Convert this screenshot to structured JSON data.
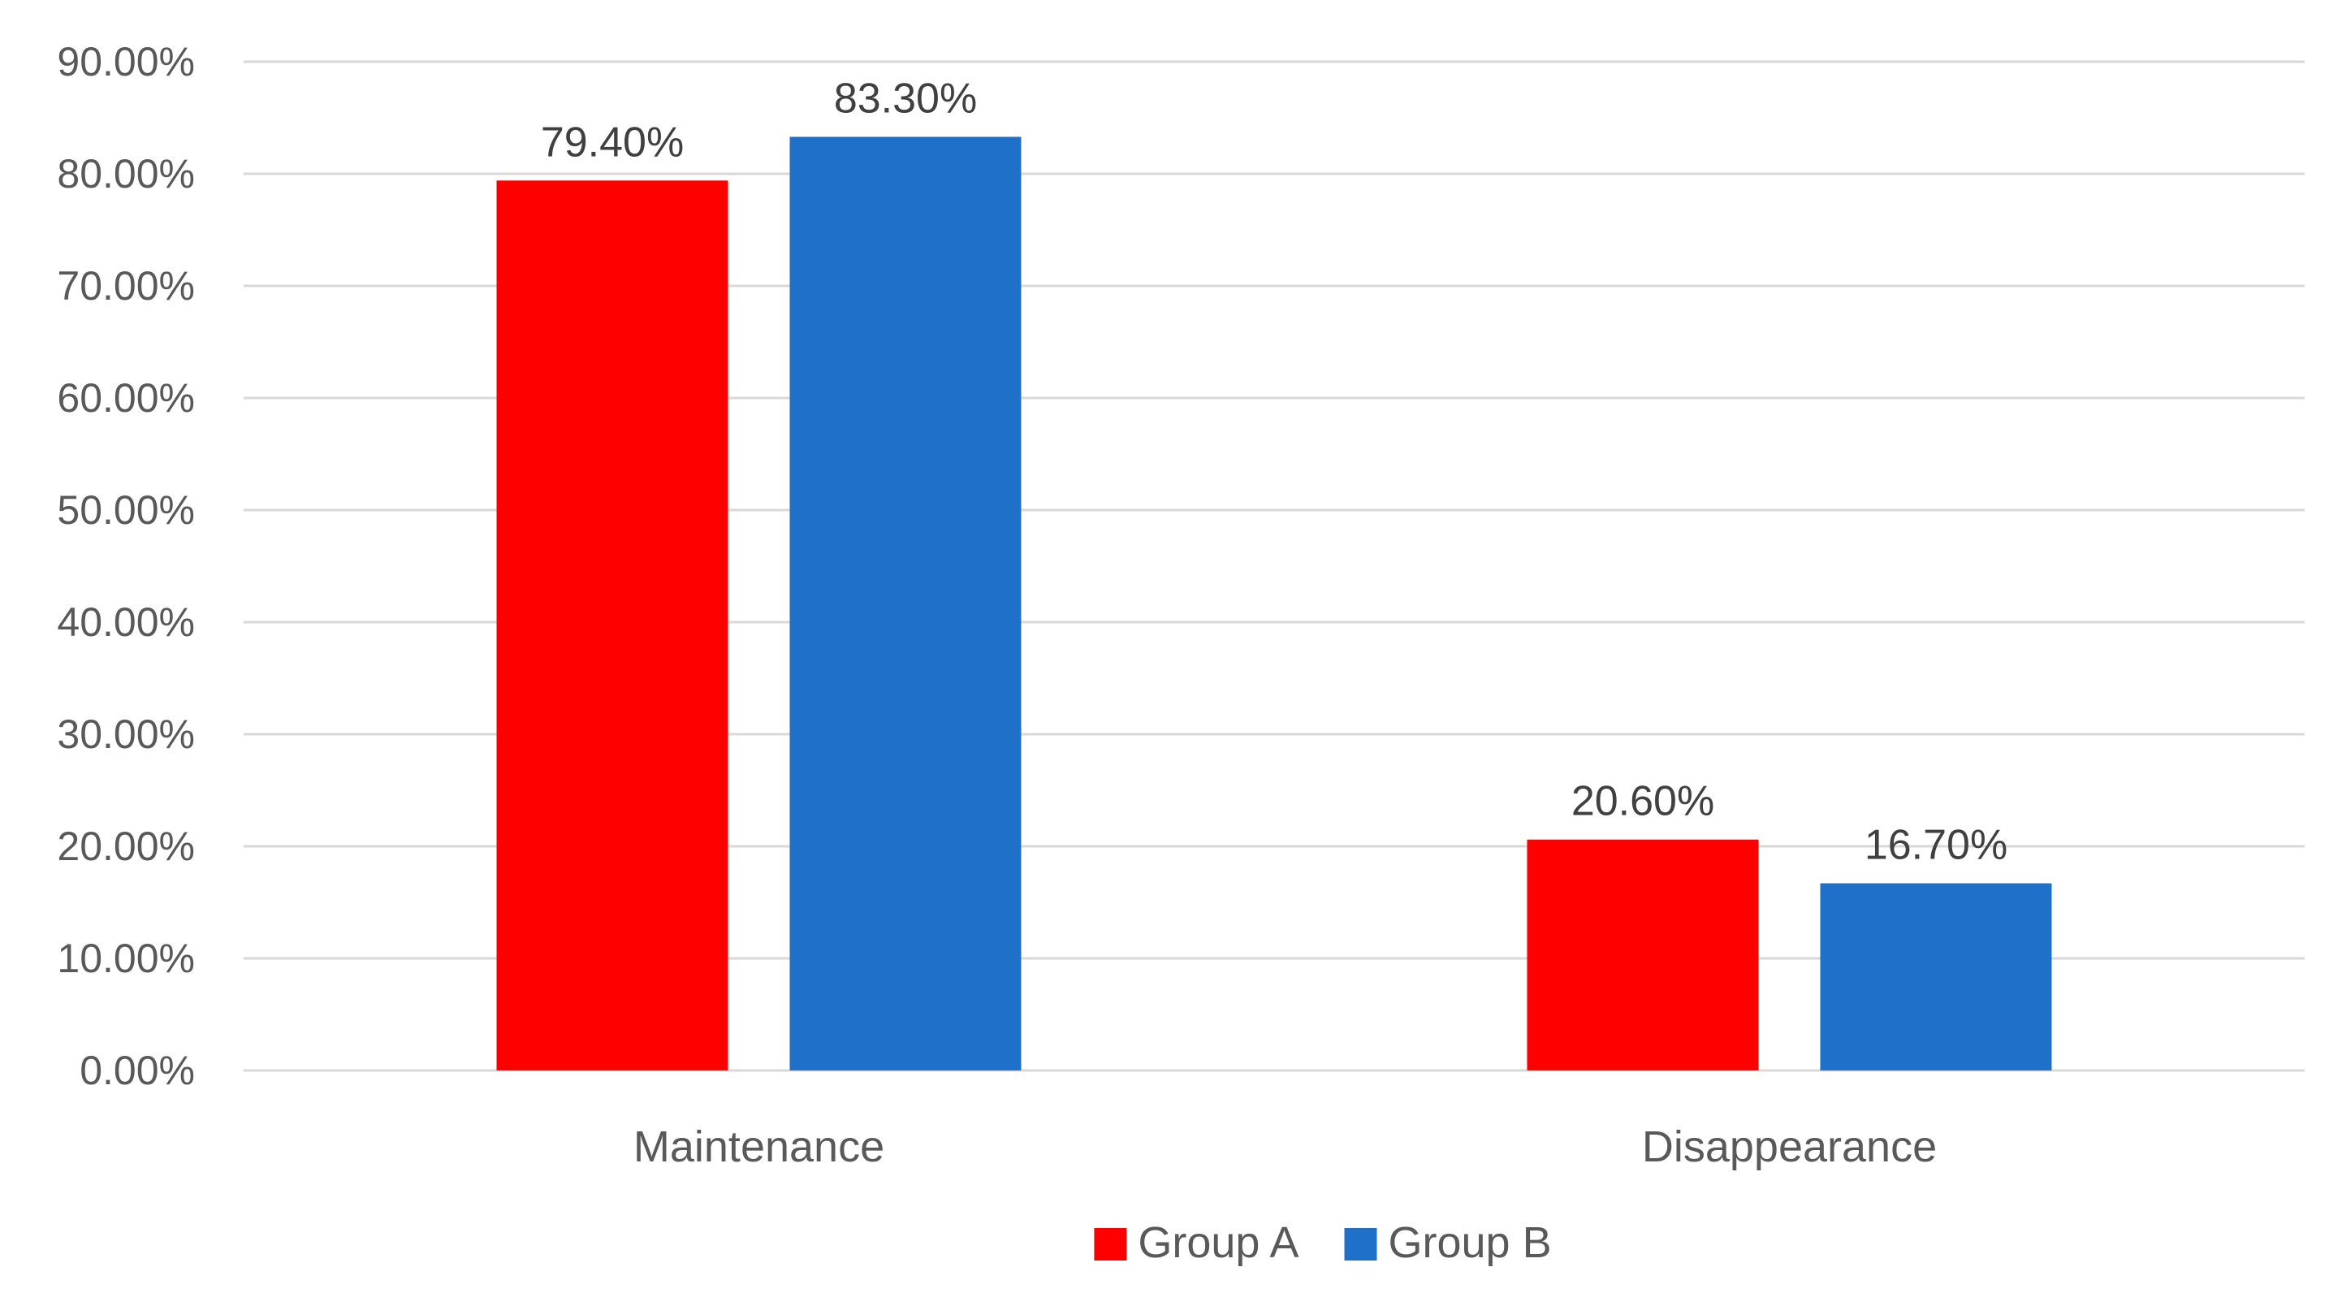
{
  "chart_data": {
    "type": "bar",
    "title": "",
    "xlabel": "",
    "ylabel": "",
    "categories": [
      "Maintenance",
      "Disappearance"
    ],
    "series": [
      {
        "name": "Group A",
        "values": [
          79.4,
          20.6
        ],
        "labels": [
          "79.40%",
          "20.60%"
        ],
        "color": "#FF0000"
      },
      {
        "name": "Group B",
        "values": [
          83.3,
          16.7
        ],
        "labels": [
          "83.30%",
          "16.70%"
        ],
        "color": "#1F70C8"
      }
    ],
    "ylim": [
      0,
      90
    ],
    "yticks": [
      0,
      10,
      20,
      30,
      40,
      50,
      60,
      70,
      80,
      90
    ],
    "ytick_labels": [
      "0.00%",
      "10.00%",
      "20.00%",
      "30.00%",
      "40.00%",
      "50.00%",
      "60.00%",
      "70.00%",
      "80.00%",
      "90.00%"
    ],
    "grid": true,
    "gridline_color": "#D9D9D9",
    "legend_placement": "bottom-center"
  }
}
